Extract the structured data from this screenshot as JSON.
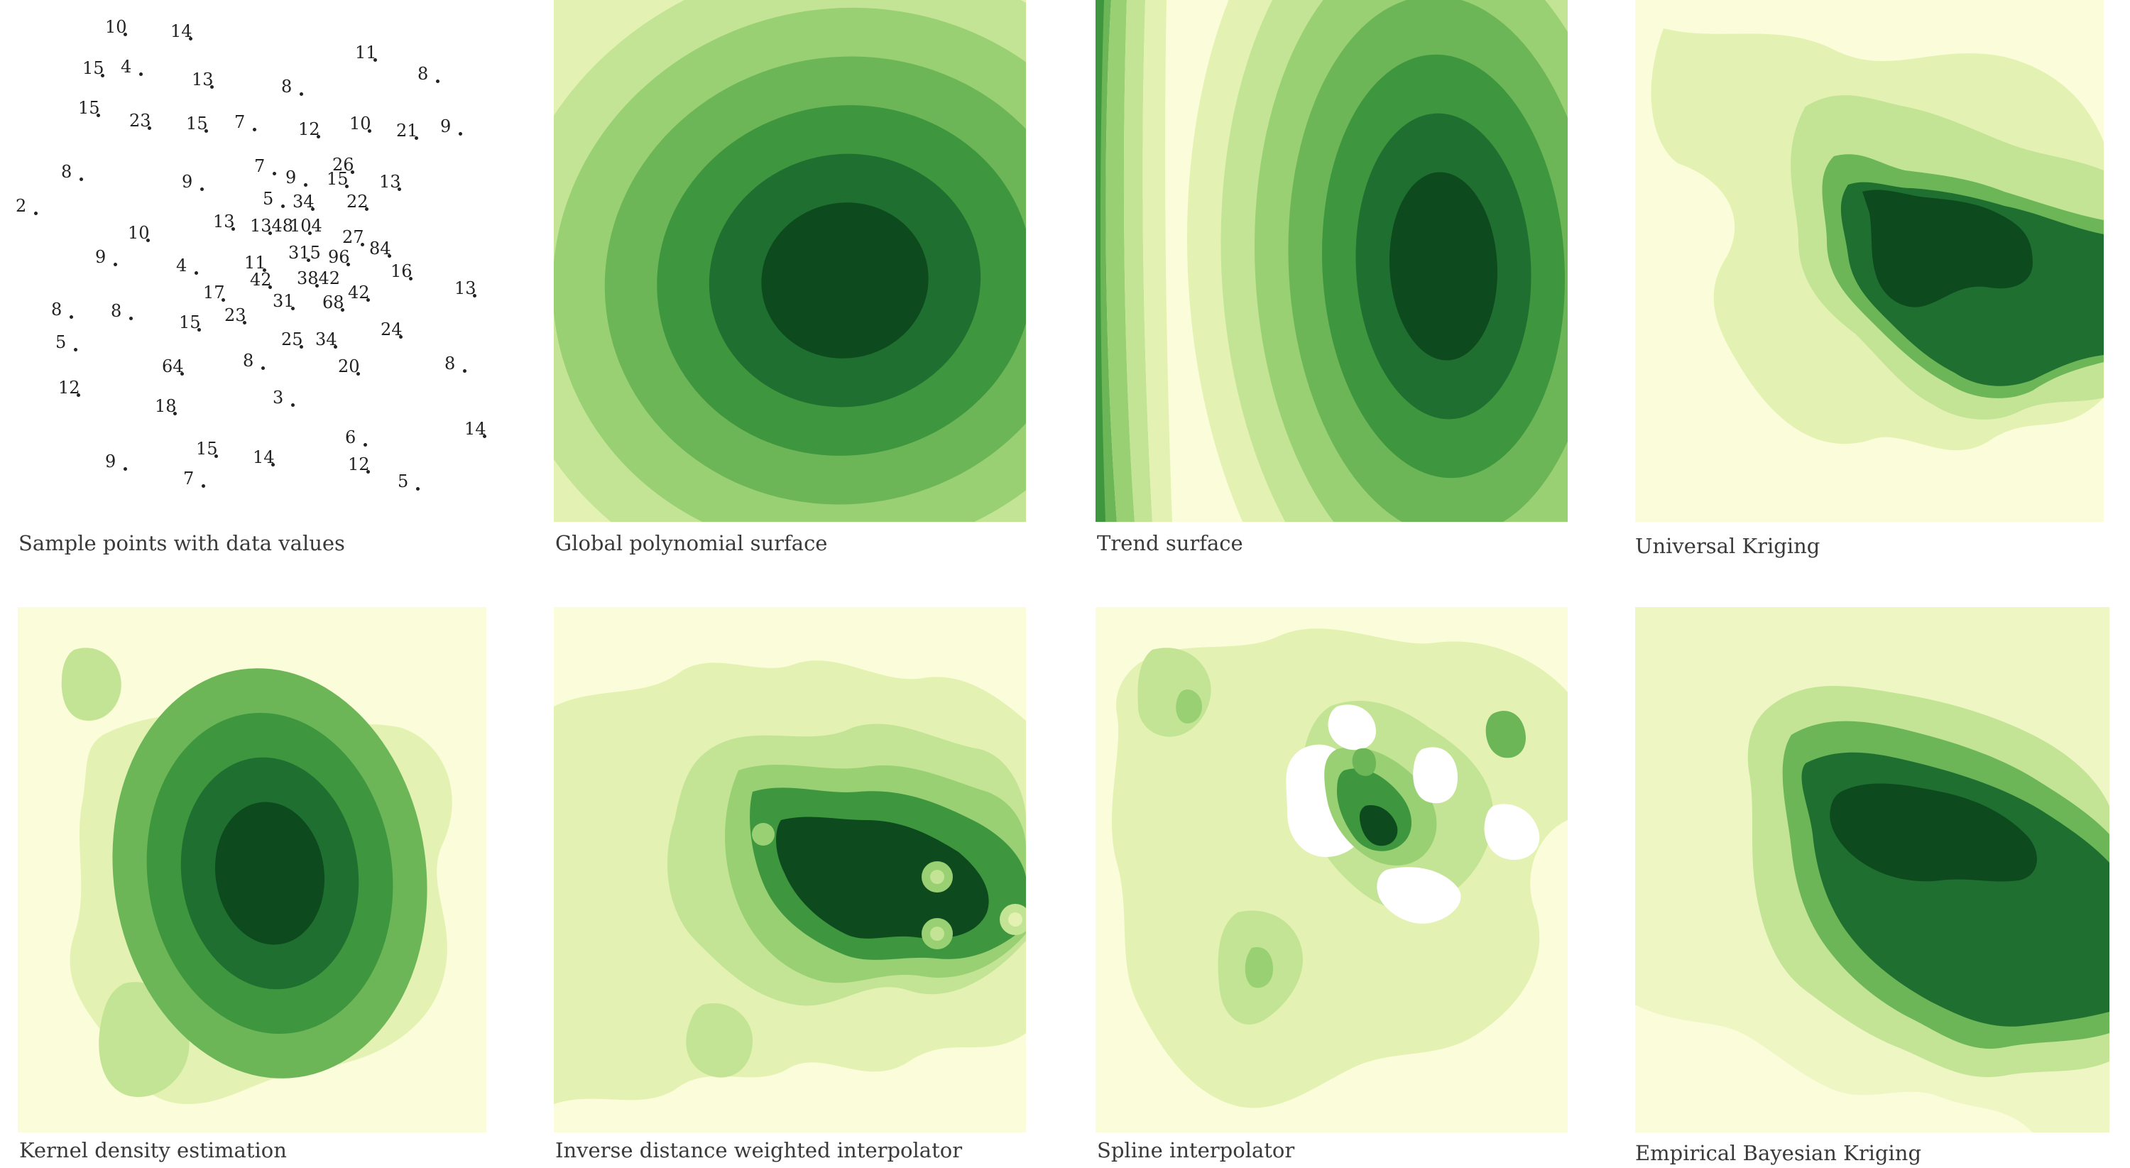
{
  "figure": {
    "palette": [
      "#fbfcd9",
      "#e3f2b2",
      "#c2e494",
      "#98d073",
      "#6cb657",
      "#3e963f",
      "#1f7030",
      "#0d4a1e"
    ],
    "panels": [
      {
        "id": "sample-points",
        "caption": "Sample points with data values"
      },
      {
        "id": "global-polynomial",
        "caption": "Global polynomial surface"
      },
      {
        "id": "trend-surface",
        "caption": "Trend surface"
      },
      {
        "id": "universal-kriging",
        "caption": "Universal Kriging"
      },
      {
        "id": "kernel-density",
        "caption": "Kernel density estimation"
      },
      {
        "id": "idw",
        "caption": "Inverse distance weighted interpolator"
      },
      {
        "id": "spline",
        "caption": "Spline interpolator"
      },
      {
        "id": "ebk",
        "caption": "Empirical Bayesian Kriging"
      }
    ],
    "sample_values": [
      "10",
      "14",
      "11",
      "8",
      "15",
      "4",
      "13",
      "8",
      "15",
      "23",
      "15",
      "7",
      "12",
      "10",
      "21",
      "9",
      "8",
      "9",
      "7",
      "15",
      "26",
      "9",
      "13",
      "2",
      "5",
      "34",
      "22",
      "10",
      "13",
      "1348",
      "104",
      "27",
      "84",
      "9",
      "315",
      "96",
      "11",
      "4",
      "42",
      "3842",
      "16",
      "17",
      "42",
      "13",
      "8",
      "8",
      "31",
      "68",
      "23",
      "15",
      "24",
      "5",
      "25",
      "34",
      "8",
      "64",
      "20",
      "8",
      "12",
      "18",
      "3",
      "6",
      "14",
      "15",
      "14",
      "9",
      "7",
      "12",
      "5"
    ]
  }
}
